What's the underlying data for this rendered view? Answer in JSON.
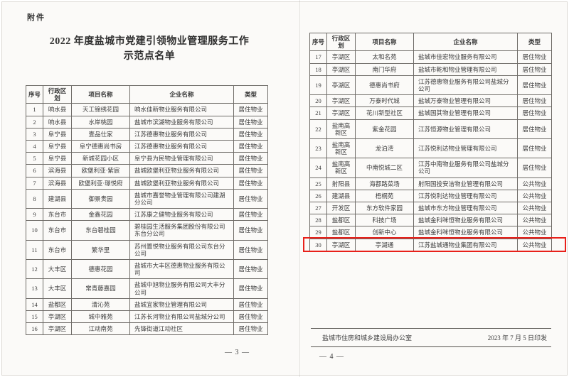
{
  "document": {
    "attachment_label": "附件",
    "title_line1": "2022 年度盐城市党建引领物业管理服务工作",
    "title_line2": "示范点名单",
    "left_page_number": "— 3 —",
    "right_page_number": "— 4 —",
    "footer_office": "盐城市住房和城乡建设局办公室",
    "footer_date": "2023 年 7 月 5 日印发"
  },
  "table_headers": {
    "no": "序号",
    "district": "行政区划",
    "project": "项目名称",
    "company": "企业名称",
    "type": "类型"
  },
  "left_rows": [
    {
      "no": "1",
      "district": "响水县",
      "project": "天工锦绣花园",
      "company": "响水佳新物业服务有限公司",
      "type": "居住物业"
    },
    {
      "no": "2",
      "district": "响水县",
      "project": "水岸桃园",
      "company": "盐城市滨湖物业服务有限公司",
      "type": "居住物业"
    },
    {
      "no": "3",
      "district": "阜宁县",
      "project": "壹品仕家",
      "company": "江苏德惠物业服务有限公司",
      "type": "居住物业"
    },
    {
      "no": "4",
      "district": "阜宁县",
      "project": "阜宁德惠尚书房",
      "company": "江苏德惠物业服务有限公司",
      "type": "居住物业"
    },
    {
      "no": "5",
      "district": "阜宁县",
      "project": "新城花园小区",
      "company": "阜宁县为民物业管理有限公司",
      "type": "居住物业"
    },
    {
      "no": "6",
      "district": "滨海县",
      "project": "欧堡利亚·紫宸",
      "company": "盐城欧堡利亚物业服务有限公司",
      "type": "居住物业"
    },
    {
      "no": "7",
      "district": "滨海县",
      "project": "欧堡利亚·璟悦府",
      "company": "盐城欧堡利亚物业服务有限公司",
      "type": "居住物业"
    },
    {
      "no": "8",
      "district": "建湖县",
      "project": "御景贵园",
      "company": "盐城市嘉誉物业管理有限公司建湖分公司",
      "type": "居住物业"
    },
    {
      "no": "9",
      "district": "东台市",
      "project": "金鑫花园",
      "company": "江苏康之健物业服务有限公司",
      "type": "居住物业"
    },
    {
      "no": "10",
      "district": "东台市",
      "project": "东台碧桂园",
      "company": "碧桂园生活服务集团股份有限公司东台分公司",
      "type": "居住物业"
    },
    {
      "no": "11",
      "district": "东台市",
      "project": "繁华里",
      "company": "苏州置悦物业服务有限公司东台分公司",
      "type": "居住物业"
    },
    {
      "no": "12",
      "district": "大丰区",
      "project": "德惠花园",
      "company": "盐城市大丰区德惠物业服务有限公司",
      "type": "居住物业"
    },
    {
      "no": "13",
      "district": "大丰区",
      "project": "常青藤嘉园",
      "company": "盐城中旭物业服务有限公司大丰分公司",
      "type": "居住物业"
    },
    {
      "no": "14",
      "district": "盐都区",
      "project": "清沁苑",
      "company": "盐城宜家物业管理有限公司",
      "type": "居住物业"
    },
    {
      "no": "15",
      "district": "亭湖区",
      "project": "城中雅苑",
      "company": "江苏长河物业有限公司盐城分公司",
      "type": "居住物业"
    },
    {
      "no": "16",
      "district": "亭湖区",
      "project": "江动南苑",
      "company": "先锋街道江动社区",
      "type": "居住物业"
    }
  ],
  "right_rows": [
    {
      "no": "17",
      "district": "亭湖区",
      "project": "太和名苑",
      "company": "盐城市佳宏物业服务有限公司",
      "type": "居住物业"
    },
    {
      "no": "18",
      "district": "亭湖区",
      "project": "南门华府",
      "company": "盐城市乾和物业管理有限公司",
      "type": "居住物业"
    },
    {
      "no": "19",
      "district": "亭湖区",
      "project": "德惠尚书府",
      "company": "江苏德惠物业服务有限公司盐城分公司",
      "type": "居住物业"
    },
    {
      "no": "20",
      "district": "亭湖区",
      "project": "万泰时代城",
      "company": "盐城万泰物业管理有限公司",
      "type": "居住物业"
    },
    {
      "no": "21",
      "district": "亭湖区",
      "project": "花川新型社区",
      "company": "盐城国其物业管理有限公司",
      "type": "居住物业"
    },
    {
      "no": "22",
      "district": "盐南高新区",
      "project": "紫金花园",
      "company": "江苏恒源物业管理有限公司",
      "type": "居住物业"
    },
    {
      "no": "23",
      "district": "盐南高新区",
      "project": "龙泊湾",
      "company": "江苏悦利达物业管理有限公司",
      "type": "居住物业"
    },
    {
      "no": "24",
      "district": "盐南高新区",
      "project": "中南悦城二区",
      "company": "江苏中南物业服务有限公司盐城分公司",
      "type": "居住物业"
    },
    {
      "no": "25",
      "district": "射阳县",
      "project": "海都路菜场",
      "company": "射阳国投安洁物业管理有限公司",
      "type": "公共物业"
    },
    {
      "no": "26",
      "district": "建湖县",
      "project": "梧桐苑",
      "company": "江苏悦利达物业管理有限公司",
      "type": "公共物业"
    },
    {
      "no": "27",
      "district": "开发区",
      "project": "东方软件家园",
      "company": "盐城市东方物业管理有限公司",
      "type": "公共物业"
    },
    {
      "no": "28",
      "district": "盐都区",
      "project": "科技广场",
      "company": "盐城金科咪恒物业服务有限公司",
      "type": "公共物业"
    },
    {
      "no": "29",
      "district": "盐都区",
      "project": "创新中心",
      "company": "盐城金科咪恒物业服务有限公司",
      "type": "公共物业"
    },
    {
      "no": "30",
      "district": "亭湖区",
      "project": "亭湖通",
      "company": "江苏盐城通物业集团有限公司",
      "type": "公共物业"
    }
  ],
  "highlight": {
    "row_no": "30",
    "color": "#e8201a"
  }
}
